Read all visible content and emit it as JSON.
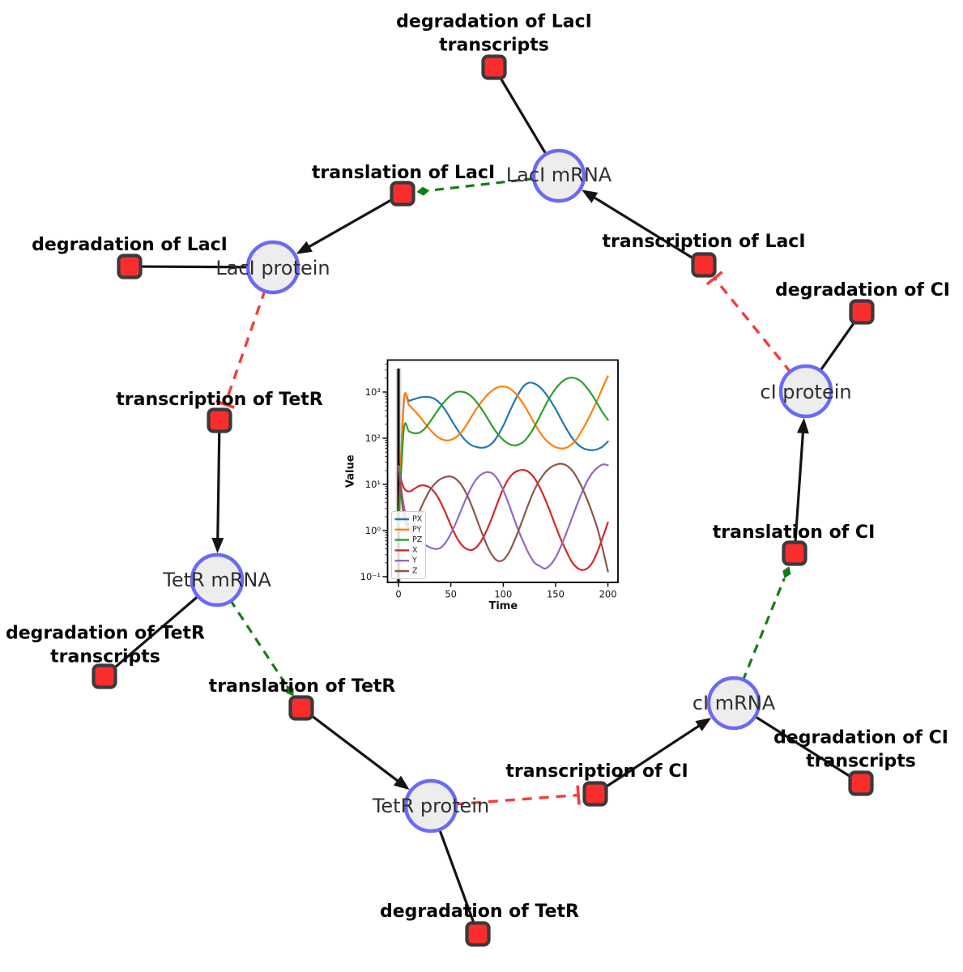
{
  "diagram": {
    "species": [
      {
        "id": "laci_mrna",
        "label": "LacI mRNA"
      },
      {
        "id": "laci_protein",
        "label": "LacI protein"
      },
      {
        "id": "tetr_mrna",
        "label": "TetR mRNA"
      },
      {
        "id": "tetr_protein",
        "label": "TetR protein"
      },
      {
        "id": "ci_mrna",
        "label": "cI mRNA"
      },
      {
        "id": "ci_protein",
        "label": "cI protein"
      }
    ],
    "reactions": [
      {
        "id": "txn_laci",
        "label_lines": [
          "transcription of LacI"
        ]
      },
      {
        "id": "transl_laci",
        "label_lines": [
          "translation of LacI"
        ]
      },
      {
        "id": "deg_laci",
        "label_lines": [
          "degradation of LacI"
        ]
      },
      {
        "id": "deg_laci_tx",
        "label_lines": [
          "degradation of LacI",
          "transcripts"
        ]
      },
      {
        "id": "txn_tetr",
        "label_lines": [
          "transcription of TetR"
        ]
      },
      {
        "id": "transl_tetr",
        "label_lines": [
          "translation of TetR"
        ]
      },
      {
        "id": "deg_tetr",
        "label_lines": [
          "degradation of TetR"
        ]
      },
      {
        "id": "deg_tetr_tx",
        "label_lines": [
          "degradation of TetR",
          "transcripts"
        ]
      },
      {
        "id": "txn_ci",
        "label_lines": [
          "transcription of CI"
        ]
      },
      {
        "id": "transl_ci",
        "label_lines": [
          "translation of CI"
        ]
      },
      {
        "id": "deg_ci",
        "label_lines": [
          "degradation of CI"
        ]
      },
      {
        "id": "deg_ci_tx",
        "label_lines": [
          "degradation of CI",
          "transcripts"
        ]
      }
    ],
    "edges": [
      {
        "from": "laci_mrna",
        "to": "deg_laci_tx",
        "type": "consumption"
      },
      {
        "from": "laci_mrna",
        "to": "transl_laci",
        "type": "modifier"
      },
      {
        "from": "transl_laci",
        "to": "laci_protein",
        "type": "production"
      },
      {
        "from": "laci_protein",
        "to": "deg_laci",
        "type": "consumption"
      },
      {
        "from": "laci_protein",
        "to": "txn_tetr",
        "type": "inhibition"
      },
      {
        "from": "txn_laci",
        "to": "laci_mrna",
        "type": "production"
      },
      {
        "from": "txn_tetr",
        "to": "tetr_mrna",
        "type": "production"
      },
      {
        "from": "tetr_mrna",
        "to": "deg_tetr_tx",
        "type": "consumption"
      },
      {
        "from": "tetr_mrna",
        "to": "transl_tetr",
        "type": "modifier"
      },
      {
        "from": "transl_tetr",
        "to": "tetr_protein",
        "type": "production"
      },
      {
        "from": "tetr_protein",
        "to": "deg_tetr",
        "type": "consumption"
      },
      {
        "from": "tetr_protein",
        "to": "txn_ci",
        "type": "inhibition"
      },
      {
        "from": "txn_ci",
        "to": "ci_mrna",
        "type": "production"
      },
      {
        "from": "ci_mrna",
        "to": "deg_ci_tx",
        "type": "consumption"
      },
      {
        "from": "ci_mrna",
        "to": "transl_ci",
        "type": "modifier"
      },
      {
        "from": "transl_ci",
        "to": "ci_protein",
        "type": "production"
      },
      {
        "from": "ci_protein",
        "to": "deg_ci",
        "type": "consumption"
      },
      {
        "from": "ci_protein",
        "to": "txn_laci",
        "type": "inhibition"
      }
    ],
    "colors": {
      "species_fill": "#ededed",
      "species_border": "#6a6af8",
      "reaction_fill": "#fa2d2d",
      "reaction_border": "#3a3a3a",
      "edge_black": "#141414",
      "modifier_green": "#157d15",
      "inhibition_red": "#f53c3c"
    }
  },
  "chart_data": {
    "type": "line",
    "title": "",
    "xlabel": "Time",
    "ylabel": "Value",
    "yscale": "log",
    "grid": false,
    "legend_position": "lower left",
    "x_ticks": [
      0,
      50,
      100,
      150,
      200
    ],
    "x_tick_labels": [
      "0",
      "50",
      "100",
      "150",
      "200"
    ],
    "y_tick_exponents": [
      3,
      2,
      1,
      0,
      -1
    ],
    "y_tick_labels": [
      "10³",
      "10²",
      "10¹",
      "10⁰",
      "10⁻¹"
    ],
    "xlim": [
      -10,
      209
    ],
    "ylim": [
      0.076,
      4700
    ],
    "axvline_x": 0,
    "x": [
      0,
      5,
      10,
      15,
      20,
      25,
      30,
      35,
      40,
      45,
      50,
      55,
      60,
      65,
      70,
      75,
      80,
      85,
      90,
      95,
      100,
      105,
      110,
      115,
      120,
      125,
      130,
      135,
      140,
      145,
      150,
      155,
      160,
      165,
      170,
      175,
      180,
      185,
      190,
      195,
      200
    ],
    "series": [
      {
        "name": "PX",
        "color": "#1f77b4",
        "values": [
          1.2,
          560,
          640,
          700,
          760,
          790,
          775,
          700,
          560,
          400,
          260,
          170,
          115,
          85,
          70,
          64,
          62,
          66,
          80,
          115,
          185,
          330,
          580,
          950,
          1380,
          1600,
          1520,
          1280,
          960,
          660,
          430,
          265,
          165,
          108,
          78,
          63,
          57,
          55,
          58,
          66,
          85
        ]
      },
      {
        "name": "PY",
        "color": "#ff7f0e",
        "values": [
          1.0,
          620,
          520,
          400,
          300,
          215,
          155,
          118,
          98,
          90,
          92,
          105,
          135,
          195,
          300,
          450,
          640,
          880,
          1100,
          1280,
          1320,
          1240,
          1020,
          760,
          520,
          330,
          205,
          135,
          95,
          75,
          64,
          60,
          62,
          72,
          95,
          145,
          230,
          390,
          680,
          1250,
          2200
        ]
      },
      {
        "name": "PZ",
        "color": "#2ca02c",
        "values": [
          1.1,
          150,
          140,
          128,
          132,
          160,
          225,
          330,
          480,
          660,
          850,
          990,
          1020,
          950,
          790,
          590,
          410,
          270,
          175,
          122,
          92,
          76,
          70,
          73,
          86,
          118,
          180,
          300,
          500,
          800,
          1180,
          1580,
          1920,
          2050,
          1950,
          1650,
          1230,
          860,
          560,
          360,
          250
        ]
      },
      {
        "name": "X",
        "color": "#d62728",
        "values": [
          20,
          8.5,
          7.0,
          8.0,
          9.3,
          9.5,
          8.5,
          6.5,
          4.2,
          2.4,
          1.3,
          0.75,
          0.5,
          0.4,
          0.38,
          0.45,
          0.65,
          1.1,
          2.1,
          4.2,
          8.0,
          13,
          17.5,
          20,
          20.5,
          18,
          13.5,
          8.5,
          4.8,
          2.5,
          1.25,
          0.65,
          0.37,
          0.22,
          0.16,
          0.14,
          0.15,
          0.2,
          0.35,
          0.7,
          1.5
        ]
      },
      {
        "name": "Y",
        "color": "#9467bd",
        "values": [
          25,
          3.5,
          1.2,
          0.75,
          0.6,
          0.5,
          0.43,
          0.4,
          0.42,
          0.55,
          0.85,
          1.5,
          2.8,
          5.2,
          9,
          13.5,
          17,
          18.5,
          17,
          12.5,
          7.5,
          3.9,
          1.9,
          0.95,
          0.52,
          0.3,
          0.2,
          0.17,
          0.15,
          0.18,
          0.26,
          0.45,
          0.85,
          1.7,
          3.4,
          6.5,
          11.5,
          17.5,
          23,
          27,
          26
        ]
      },
      {
        "name": "Z",
        "color": "#8c564b",
        "values": [
          22,
          2.2,
          1.1,
          1.4,
          2.6,
          4.6,
          7.5,
          10.5,
          13,
          14.5,
          14.8,
          13,
          9.8,
          6.2,
          3.4,
          1.7,
          0.85,
          0.45,
          0.28,
          0.22,
          0.23,
          0.32,
          0.55,
          1.05,
          2.1,
          4.2,
          7.8,
          12.5,
          18,
          23,
          26.5,
          28,
          26,
          21,
          14.5,
          8.8,
          4.8,
          2.4,
          1.1,
          0.4,
          0.13
        ]
      }
    ]
  }
}
